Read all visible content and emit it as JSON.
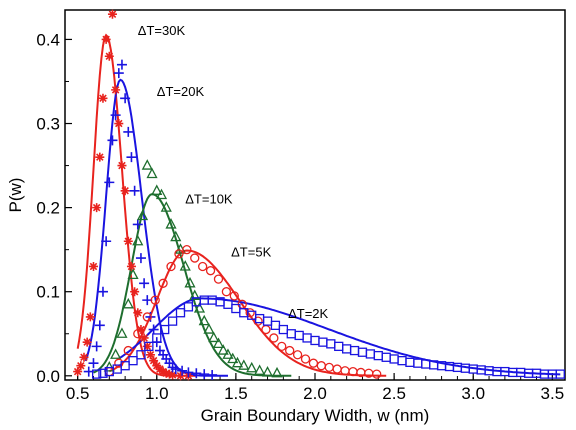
{
  "chart_data": {
    "type": "scatter",
    "xlabel": "Grain Boundary Width, w (nm)",
    "ylabel": "P(w)",
    "xlim": [
      0.42,
      3.58
    ],
    "ylim": [
      -0.005,
      0.435
    ],
    "xticks": [
      0.5,
      1.0,
      1.5,
      2.0,
      2.5,
      3.0,
      3.5
    ],
    "xtick_labels": [
      "0.5",
      "1.0",
      "1.5",
      "2.0",
      "2.5",
      "3.0",
      "3.5"
    ],
    "yticks": [
      0.0,
      0.1,
      0.2,
      0.3,
      0.4
    ],
    "ytick_labels": [
      "0.0",
      "0.1",
      "0.2",
      "0.3",
      "0.4"
    ],
    "grid": false,
    "series": [
      {
        "name": "ΔT=30K",
        "color": "#e8231e",
        "marker": "asterisk",
        "fit": {
          "peak_x": 0.68,
          "peak_y": 0.405,
          "sigma_left": 0.08,
          "sigma_right": 0.1,
          "x_range": [
            0.5,
            1.25
          ]
        },
        "points": [
          [
            0.5,
            0.005
          ],
          [
            0.52,
            0.012
          ],
          [
            0.54,
            0.022
          ],
          [
            0.56,
            0.04
          ],
          [
            0.58,
            0.07
          ],
          [
            0.6,
            0.13
          ],
          [
            0.62,
            0.2
          ],
          [
            0.64,
            0.26
          ],
          [
            0.66,
            0.33
          ],
          [
            0.68,
            0.4
          ],
          [
            0.7,
            0.38
          ],
          [
            0.72,
            0.43
          ],
          [
            0.74,
            0.34
          ],
          [
            0.76,
            0.3
          ],
          [
            0.78,
            0.25
          ],
          [
            0.8,
            0.22
          ],
          [
            0.82,
            0.16
          ],
          [
            0.84,
            0.13
          ],
          [
            0.86,
            0.1
          ],
          [
            0.88,
            0.075
          ],
          [
            0.9,
            0.055
          ],
          [
            0.92,
            0.045
          ],
          [
            0.94,
            0.035
          ],
          [
            0.96,
            0.025
          ],
          [
            0.98,
            0.018
          ],
          [
            1.0,
            0.012
          ],
          [
            1.02,
            0.008
          ],
          [
            1.04,
            0.005
          ],
          [
            1.06,
            0.003
          ],
          [
            1.08,
            0.002
          ],
          [
            1.1,
            0.001
          ],
          [
            1.15,
            0.0
          ],
          [
            1.2,
            0.0
          ]
        ]
      },
      {
        "name": "ΔT=20K",
        "color": "#1a14e0",
        "marker": "plus",
        "fit": {
          "peak_x": 0.77,
          "peak_y": 0.352,
          "sigma_left": 0.09,
          "sigma_right": 0.135,
          "x_range": [
            0.55,
            1.45
          ]
        },
        "points": [
          [
            0.57,
            0.005
          ],
          [
            0.6,
            0.015
          ],
          [
            0.62,
            0.035
          ],
          [
            0.64,
            0.06
          ],
          [
            0.66,
            0.1
          ],
          [
            0.68,
            0.16
          ],
          [
            0.7,
            0.23
          ],
          [
            0.72,
            0.28
          ],
          [
            0.74,
            0.31
          ],
          [
            0.76,
            0.36
          ],
          [
            0.78,
            0.37
          ],
          [
            0.8,
            0.33
          ],
          [
            0.82,
            0.29
          ],
          [
            0.84,
            0.26
          ],
          [
            0.86,
            0.22
          ],
          [
            0.88,
            0.18
          ],
          [
            0.9,
            0.14
          ],
          [
            0.92,
            0.11
          ],
          [
            0.94,
            0.09
          ],
          [
            0.96,
            0.07
          ],
          [
            0.98,
            0.055
          ],
          [
            1.0,
            0.04
          ],
          [
            1.02,
            0.03
          ],
          [
            1.04,
            0.025
          ],
          [
            1.06,
            0.02
          ],
          [
            1.08,
            0.015
          ],
          [
            1.1,
            0.01
          ],
          [
            1.12,
            0.008
          ],
          [
            1.16,
            0.006
          ],
          [
            1.2,
            0.004
          ],
          [
            1.25,
            0.003
          ],
          [
            1.3,
            0.002
          ],
          [
            1.35,
            0.001
          ]
        ]
      },
      {
        "name": "ΔT=10K",
        "color": "#1e6e2e",
        "marker": "triangle",
        "fit": {
          "peak_x": 0.97,
          "peak_y": 0.216,
          "sigma_left": 0.13,
          "sigma_right": 0.2,
          "x_range": [
            0.6,
            1.85
          ]
        },
        "points": [
          [
            0.7,
            0.01
          ],
          [
            0.74,
            0.025
          ],
          [
            0.78,
            0.05
          ],
          [
            0.82,
            0.085
          ],
          [
            0.85,
            0.12
          ],
          [
            0.88,
            0.16
          ],
          [
            0.91,
            0.19
          ],
          [
            0.94,
            0.25
          ],
          [
            0.97,
            0.24
          ],
          [
            1.0,
            0.22
          ],
          [
            1.03,
            0.215
          ],
          [
            1.06,
            0.2
          ],
          [
            1.09,
            0.18
          ],
          [
            1.12,
            0.165
          ],
          [
            1.15,
            0.15
          ],
          [
            1.18,
            0.13
          ],
          [
            1.21,
            0.11
          ],
          [
            1.24,
            0.095
          ],
          [
            1.27,
            0.08
          ],
          [
            1.3,
            0.065
          ],
          [
            1.33,
            0.055
          ],
          [
            1.36,
            0.045
          ],
          [
            1.39,
            0.038
          ],
          [
            1.42,
            0.03
          ],
          [
            1.45,
            0.025
          ],
          [
            1.48,
            0.02
          ],
          [
            1.51,
            0.015
          ],
          [
            1.55,
            0.012
          ],
          [
            1.6,
            0.009
          ],
          [
            1.65,
            0.006
          ],
          [
            1.7,
            0.004
          ],
          [
            1.76,
            0.003
          ]
        ]
      },
      {
        "name": "ΔT=5K",
        "color": "#e8231e",
        "marker": "circle",
        "fit": {
          "peak_x": 1.19,
          "peak_y": 0.149,
          "sigma_left": 0.19,
          "sigma_right": 0.33,
          "x_range": [
            0.7,
            2.45
          ]
        },
        "points": [
          [
            0.7,
            0.005
          ],
          [
            0.76,
            0.015
          ],
          [
            0.82,
            0.03
          ],
          [
            0.88,
            0.05
          ],
          [
            0.94,
            0.07
          ],
          [
            0.99,
            0.09
          ],
          [
            1.04,
            0.11
          ],
          [
            1.09,
            0.13
          ],
          [
            1.14,
            0.145
          ],
          [
            1.19,
            0.15
          ],
          [
            1.24,
            0.14
          ],
          [
            1.29,
            0.13
          ],
          [
            1.34,
            0.125
          ],
          [
            1.39,
            0.115
          ],
          [
            1.44,
            0.1
          ],
          [
            1.49,
            0.095
          ],
          [
            1.54,
            0.085
          ],
          [
            1.59,
            0.075
          ],
          [
            1.64,
            0.065
          ],
          [
            1.69,
            0.055
          ],
          [
            1.74,
            0.045
          ],
          [
            1.79,
            0.035
          ],
          [
            1.84,
            0.03
          ],
          [
            1.89,
            0.025
          ],
          [
            1.94,
            0.02
          ],
          [
            1.99,
            0.015
          ],
          [
            2.04,
            0.012
          ],
          [
            2.09,
            0.01
          ],
          [
            2.14,
            0.008
          ],
          [
            2.19,
            0.006
          ],
          [
            2.24,
            0.005
          ],
          [
            2.29,
            0.004
          ],
          [
            2.34,
            0.003
          ],
          [
            2.39,
            0.002
          ]
        ]
      },
      {
        "name": "ΔT=2K",
        "color": "#1a14e0",
        "marker": "square",
        "fit": {
          "peak_x": 1.28,
          "peak_y": 0.092,
          "sigma_left": 0.3,
          "sigma_right": 0.8,
          "x_range": [
            0.75,
            3.55
          ]
        },
        "points": [
          [
            0.62,
            0.002
          ],
          [
            0.66,
            0.003
          ],
          [
            0.7,
            0.005
          ],
          [
            0.75,
            0.008
          ],
          [
            0.8,
            0.012
          ],
          [
            0.85,
            0.018
          ],
          [
            0.9,
            0.025
          ],
          [
            0.95,
            0.035
          ],
          [
            1.0,
            0.045
          ],
          [
            1.05,
            0.055
          ],
          [
            1.1,
            0.065
          ],
          [
            1.15,
            0.075
          ],
          [
            1.2,
            0.082
          ],
          [
            1.25,
            0.088
          ],
          [
            1.3,
            0.09
          ],
          [
            1.35,
            0.09
          ],
          [
            1.4,
            0.088
          ],
          [
            1.45,
            0.085
          ],
          [
            1.5,
            0.08
          ],
          [
            1.55,
            0.075
          ],
          [
            1.6,
            0.072
          ],
          [
            1.65,
            0.068
          ],
          [
            1.7,
            0.065
          ],
          [
            1.75,
            0.06
          ],
          [
            1.8,
            0.055
          ],
          [
            1.85,
            0.05
          ],
          [
            1.9,
            0.048
          ],
          [
            1.95,
            0.045
          ],
          [
            2.0,
            0.042
          ],
          [
            2.05,
            0.04
          ],
          [
            2.1,
            0.038
          ],
          [
            2.15,
            0.035
          ],
          [
            2.2,
            0.032
          ],
          [
            2.25,
            0.03
          ],
          [
            2.3,
            0.028
          ],
          [
            2.35,
            0.026
          ],
          [
            2.4,
            0.024
          ],
          [
            2.45,
            0.022
          ],
          [
            2.5,
            0.02
          ],
          [
            2.55,
            0.018
          ],
          [
            2.6,
            0.016
          ],
          [
            2.65,
            0.015
          ],
          [
            2.7,
            0.014
          ],
          [
            2.75,
            0.013
          ],
          [
            2.8,
            0.012
          ],
          [
            2.85,
            0.011
          ],
          [
            2.9,
            0.01
          ],
          [
            2.95,
            0.009
          ],
          [
            3.0,
            0.008
          ],
          [
            3.05,
            0.007
          ],
          [
            3.1,
            0.006
          ],
          [
            3.15,
            0.005
          ],
          [
            3.2,
            0.005
          ],
          [
            3.25,
            0.004
          ],
          [
            3.3,
            0.004
          ],
          [
            3.35,
            0.003
          ],
          [
            3.4,
            0.003
          ],
          [
            3.45,
            0.002
          ],
          [
            3.5,
            0.002
          ],
          [
            3.55,
            0.002
          ]
        ]
      }
    ],
    "annotations": [
      {
        "text": "ΔT=30K",
        "x": 0.88,
        "y": 0.405
      },
      {
        "text": "ΔT=20K",
        "x": 1.0,
        "y": 0.333
      },
      {
        "text": "ΔT=10K",
        "x": 1.18,
        "y": 0.205
      },
      {
        "text": "ΔT=5K",
        "x": 1.47,
        "y": 0.142
      },
      {
        "text": "ΔT=2K",
        "x": 1.83,
        "y": 0.069
      }
    ]
  }
}
